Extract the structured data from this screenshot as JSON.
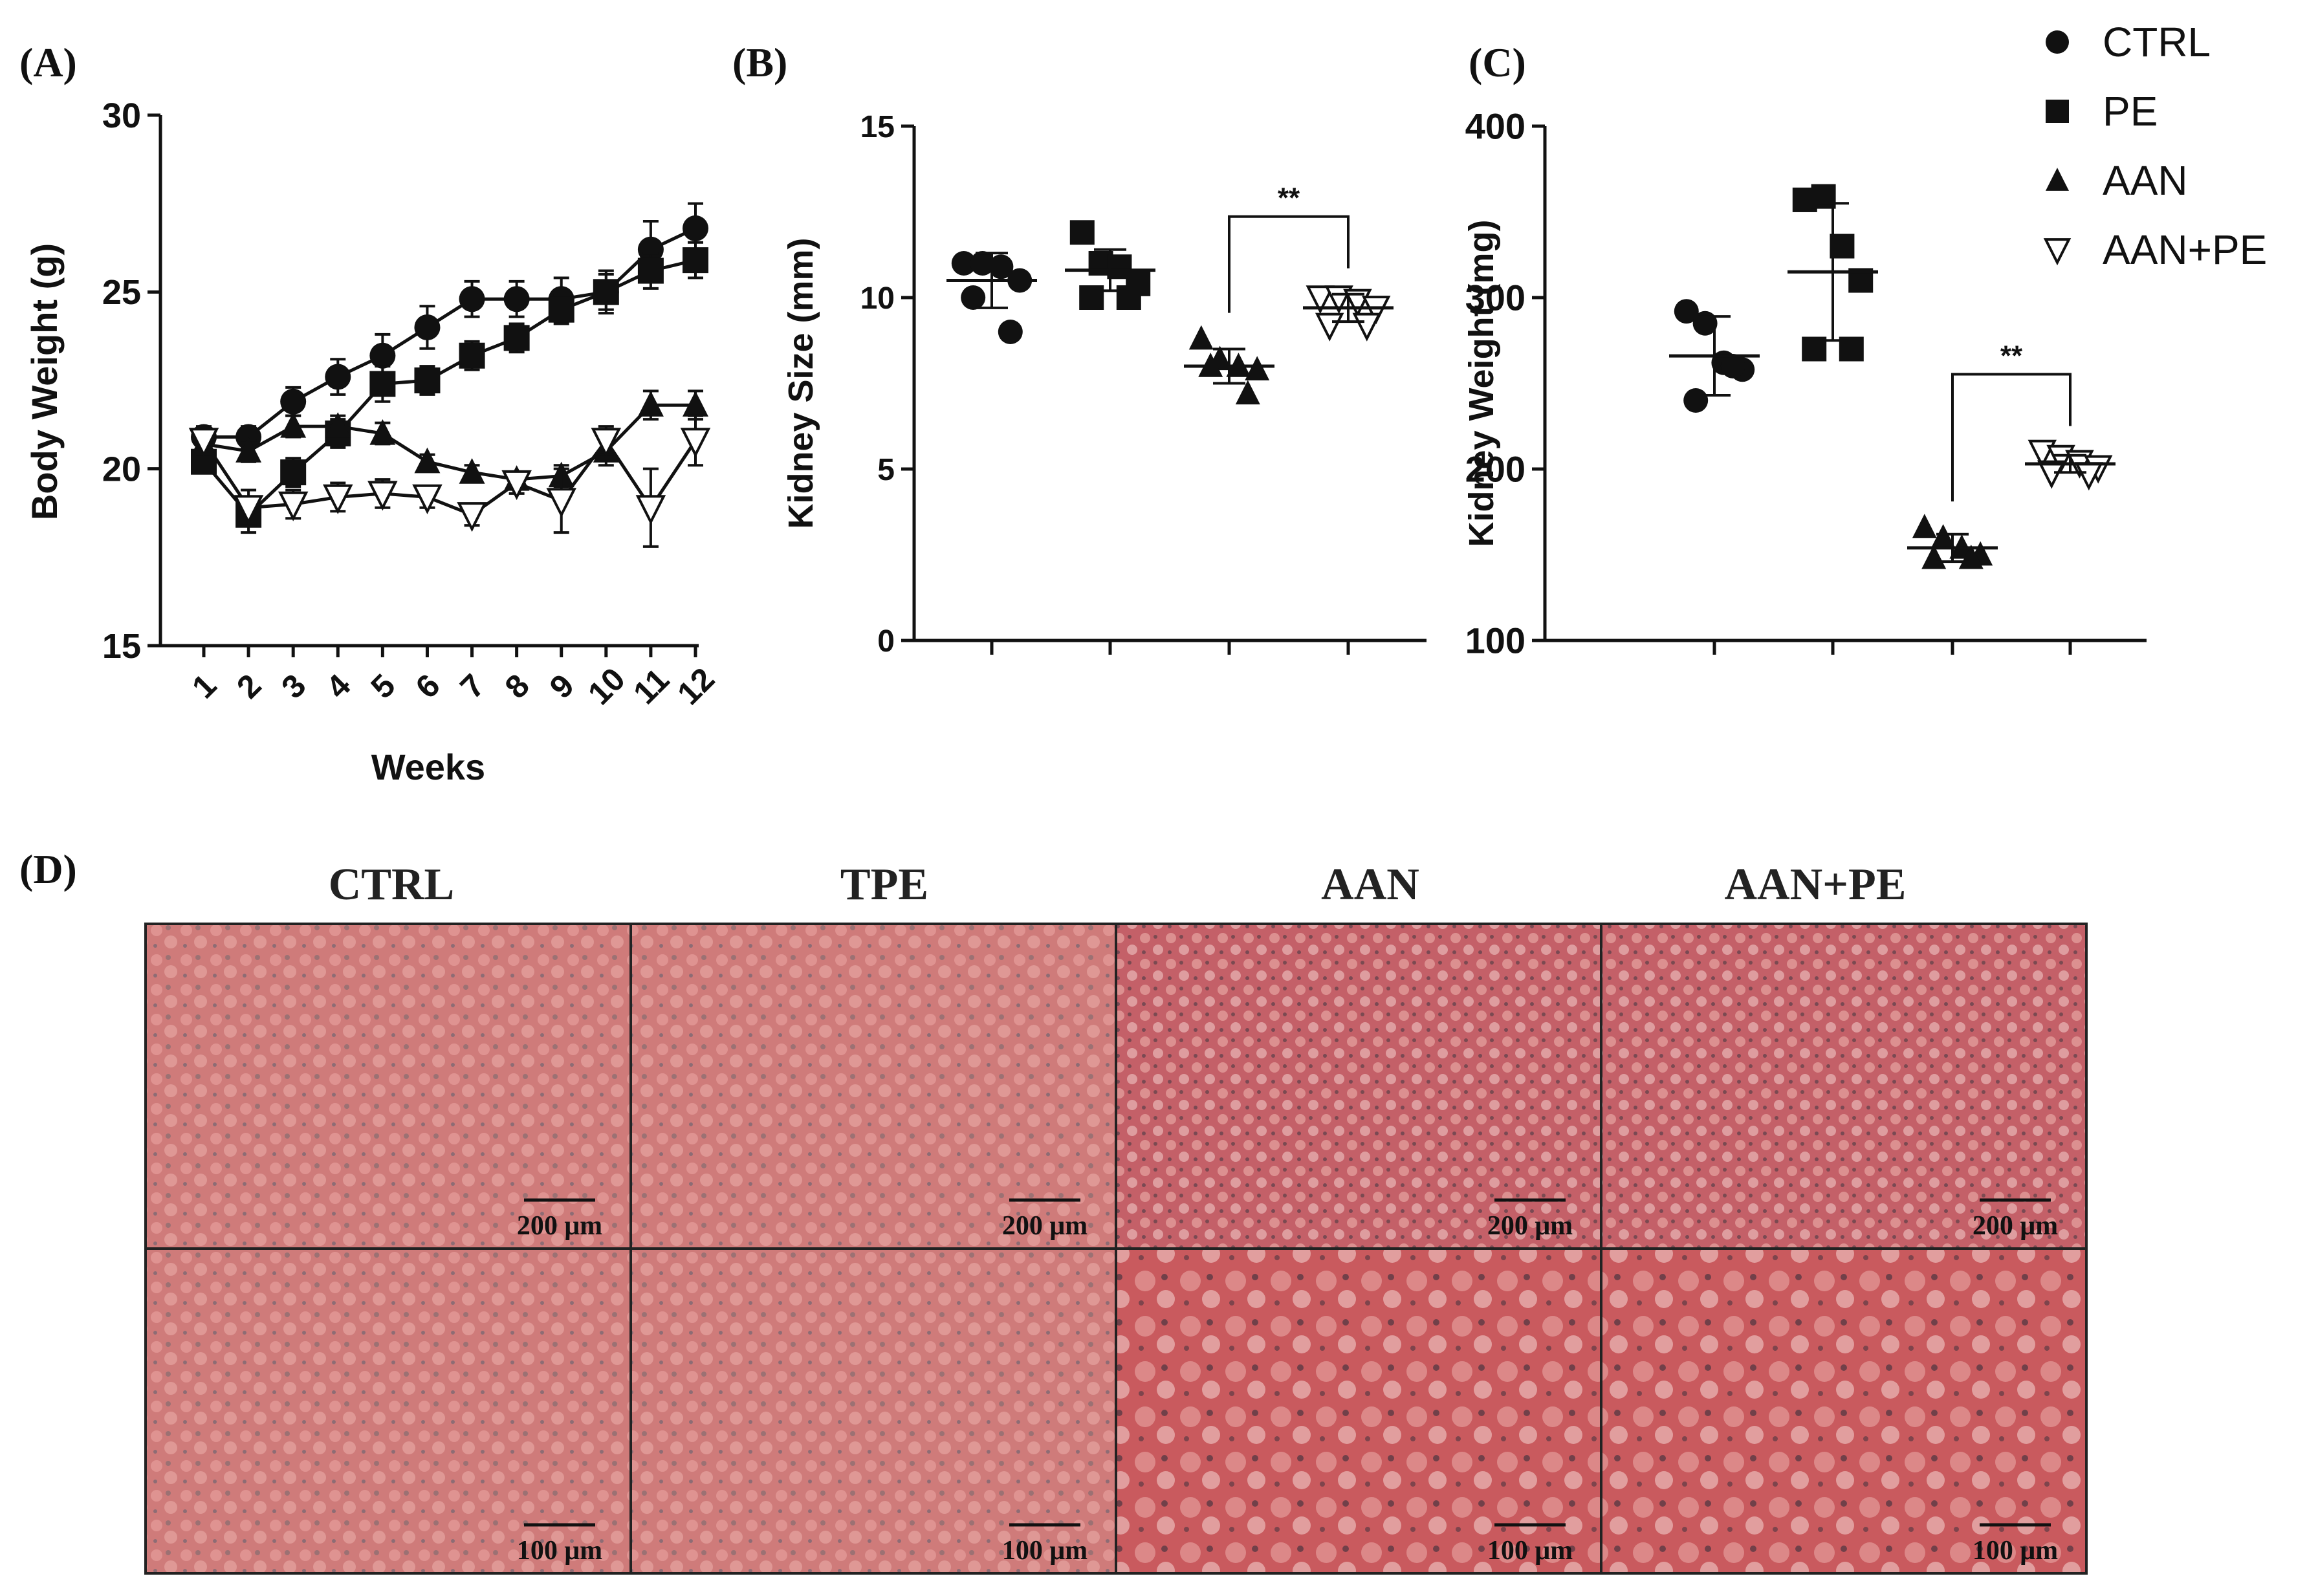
{
  "panel_labels": {
    "a": "(A)",
    "b": "(B)",
    "c": "(C)",
    "d": "(D)"
  },
  "legend": {
    "items": [
      {
        "label": "CTRL",
        "marker": "circle-filled"
      },
      {
        "label": "PE",
        "marker": "square-filled"
      },
      {
        "label": "AAN",
        "marker": "triangle-filled"
      },
      {
        "label": "AAN+PE",
        "marker": "triangle-down-open"
      }
    ]
  },
  "chart_data": [
    {
      "panel": "(A)",
      "type": "line",
      "xlabel": "Weeks",
      "ylabel": "Body Weight (g)",
      "categories": [
        "1",
        "2",
        "3",
        "4",
        "5",
        "6",
        "7",
        "8",
        "9",
        "10",
        "11",
        "12"
      ],
      "ylim": [
        15,
        30
      ],
      "yticks": [
        "15",
        "20",
        "25",
        "30"
      ],
      "series": [
        {
          "name": "CTRL",
          "marker": "circle-filled",
          "values": [
            20.9,
            20.9,
            21.9,
            22.6,
            23.2,
            24.0,
            24.8,
            24.8,
            24.8,
            25.0,
            26.2,
            26.8
          ],
          "errors": [
            0.3,
            0.3,
            0.4,
            0.5,
            0.6,
            0.6,
            0.5,
            0.5,
            0.6,
            0.6,
            0.8,
            0.7
          ]
        },
        {
          "name": "PE",
          "marker": "square-filled",
          "values": [
            20.2,
            18.7,
            19.9,
            21.0,
            22.4,
            22.5,
            23.2,
            23.7,
            24.5,
            25.0,
            25.6,
            25.9
          ],
          "errors": [
            0.3,
            0.5,
            0.4,
            0.4,
            0.5,
            0.4,
            0.4,
            0.4,
            0.4,
            0.5,
            0.5,
            0.5
          ]
        },
        {
          "name": "AAN",
          "marker": "triangle-filled",
          "values": [
            20.7,
            20.5,
            21.2,
            21.2,
            21.0,
            20.2,
            19.9,
            19.7,
            19.8,
            20.5,
            21.8,
            21.8
          ],
          "errors": [
            0.3,
            0.3,
            0.3,
            0.3,
            0.3,
            0.2,
            0.2,
            0.2,
            0.3,
            0.4,
            0.4,
            0.4
          ]
        },
        {
          "name": "AAN+PE",
          "marker": "triangle-down-open",
          "values": [
            20.8,
            18.9,
            19.0,
            19.2,
            19.3,
            19.2,
            18.7,
            19.6,
            19.1,
            20.8,
            18.9,
            20.8
          ],
          "errors": [
            0.2,
            0.5,
            0.4,
            0.4,
            0.4,
            0.3,
            0.3,
            0.3,
            0.9,
            0.4,
            1.1,
            0.7
          ]
        }
      ]
    },
    {
      "panel": "(B)",
      "type": "scatter",
      "ylabel": "Kidney Size (mm)",
      "ylim": [
        0,
        15
      ],
      "yticks": [
        "0",
        "5",
        "10",
        "15"
      ],
      "significance": {
        "label": "**",
        "between": [
          "AAN",
          "AAN+PE"
        ]
      },
      "groups": [
        {
          "name": "CTRL",
          "marker": "circle-filled",
          "points": [
            11.0,
            11.0,
            10.9,
            10.5,
            10.0,
            9.0
          ],
          "mean": 10.5,
          "sd": 0.8
        },
        {
          "name": "PE",
          "marker": "square-filled",
          "points": [
            11.9,
            11.0,
            10.9,
            10.4,
            10.0,
            10.0
          ],
          "mean": 10.8,
          "sd": 0.6
        },
        {
          "name": "AAN",
          "marker": "triangle-filled",
          "points": [
            8.8,
            8.2,
            8.0,
            7.9,
            8.0,
            7.2
          ],
          "mean": 8.0,
          "sd": 0.5
        },
        {
          "name": "AAN+PE",
          "marker": "triangle-down-open",
          "points": [
            10.0,
            10.0,
            9.9,
            9.7,
            9.2,
            9.2
          ],
          "mean": 9.7,
          "sd": 0.4
        }
      ]
    },
    {
      "panel": "(C)",
      "type": "scatter",
      "ylabel": "Kidney Weight (mg)",
      "ylim": [
        100,
        400
      ],
      "yticks": [
        "100",
        "200",
        "300",
        "400"
      ],
      "significance": {
        "label": "**",
        "between": [
          "AAN",
          "AAN+PE"
        ]
      },
      "groups": [
        {
          "name": "CTRL",
          "marker": "circle-filled",
          "points": [
            292,
            285,
            262,
            258,
            240,
            260
          ],
          "mean": 266,
          "sd": 23
        },
        {
          "name": "PE",
          "marker": "square-filled",
          "points": [
            357,
            359,
            330,
            310,
            270,
            270
          ],
          "mean": 315,
          "sd": 40
        },
        {
          "name": "AAN",
          "marker": "triangle-filled",
          "points": [
            166,
            160,
            154,
            150,
            148,
            148
          ],
          "mean": 154,
          "sd": 8
        },
        {
          "name": "AAN+PE",
          "marker": "triangle-down-open",
          "points": [
            210,
            207,
            204,
            201,
            198,
            197
          ],
          "mean": 203,
          "sd": 5
        }
      ]
    }
  ],
  "histology": {
    "columns": [
      "CTRL",
      "TPE",
      "AAN",
      "AAN+PE"
    ],
    "scalebars": [
      "200 μm",
      "100 μm"
    ]
  }
}
